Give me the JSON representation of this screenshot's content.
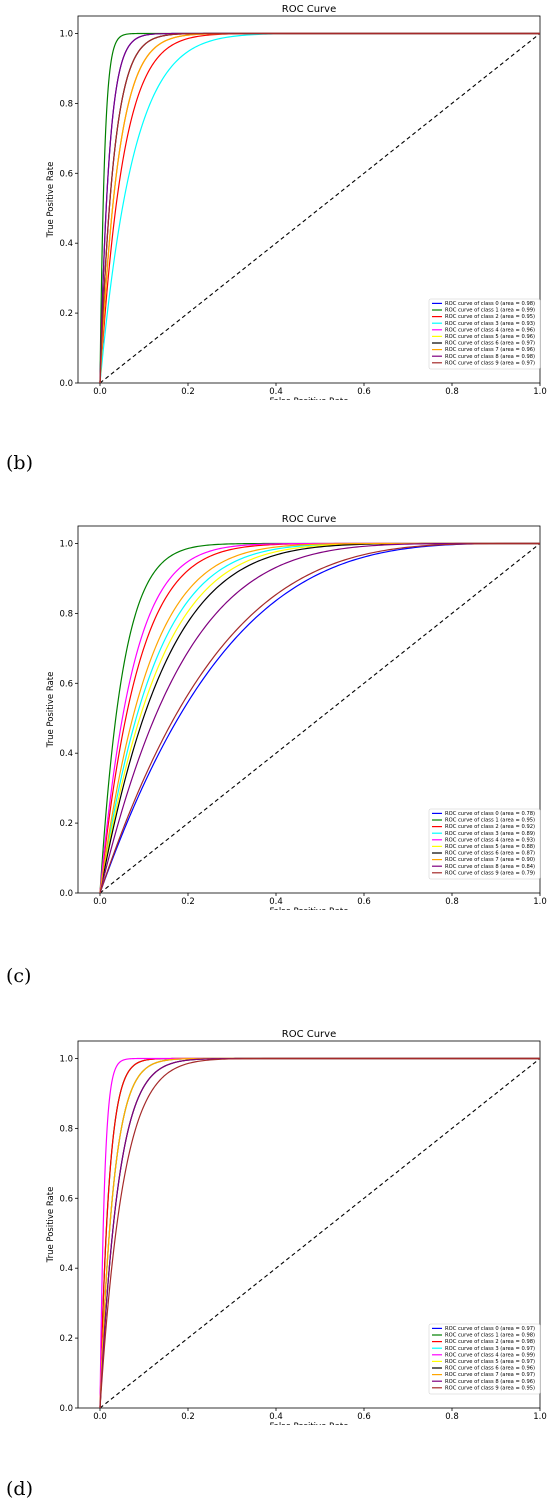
{
  "captions": [
    "(b)",
    "(c)",
    "(d)"
  ],
  "chart_data": [
    {
      "type": "line",
      "title": "ROC Curve",
      "xlabel": "False Positive Rate",
      "ylabel": "True Positive Rate",
      "xlim": [
        -0.05,
        1.0
      ],
      "ylim": [
        0.0,
        1.05
      ],
      "xticks": [
        "0.0",
        "0.2",
        "0.4",
        "0.6",
        "0.8",
        "1.0"
      ],
      "yticks": [
        "0.0",
        "0.2",
        "0.4",
        "0.6",
        "0.8",
        "1.0"
      ],
      "legend_position": "lower-right",
      "diagonal": true,
      "series": [
        {
          "name": "ROC curve of class 0 (area = 0.98)",
          "auc": 0.98,
          "color": "#0000ff"
        },
        {
          "name": "ROC curve of class 1 (area = 0.99)",
          "auc": 0.99,
          "color": "#008000"
        },
        {
          "name": "ROC curve of class 2 (area = 0.95)",
          "auc": 0.95,
          "color": "#ff0000"
        },
        {
          "name": "ROC curve of class 3 (area = 0.93)",
          "auc": 0.93,
          "color": "#00ffff"
        },
        {
          "name": "ROC curve of class 4 (area = 0.96)",
          "auc": 0.96,
          "color": "#ff00ff"
        },
        {
          "name": "ROC curve of class 5 (area = 0.96)",
          "auc": 0.96,
          "color": "#ffff00"
        },
        {
          "name": "ROC curve of class 6 (area = 0.97)",
          "auc": 0.97,
          "color": "#000000"
        },
        {
          "name": "ROC curve of class 7 (area = 0.96)",
          "auc": 0.96,
          "color": "#ffa500"
        },
        {
          "name": "ROC curve of class 8 (area = 0.98)",
          "auc": 0.98,
          "color": "#800080"
        },
        {
          "name": "ROC curve of class 9 (area = 0.97)",
          "auc": 0.97,
          "color": "#a52a2a"
        }
      ]
    },
    {
      "type": "line",
      "title": "ROC Curve",
      "xlabel": "False Positive Rate",
      "ylabel": "True Positive Rate",
      "xlim": [
        -0.05,
        1.0
      ],
      "ylim": [
        0.0,
        1.05
      ],
      "xticks": [
        "0.0",
        "0.2",
        "0.4",
        "0.6",
        "0.8",
        "1.0"
      ],
      "yticks": [
        "0.0",
        "0.2",
        "0.4",
        "0.6",
        "0.8",
        "1.0"
      ],
      "legend_position": "lower-right",
      "diagonal": true,
      "series": [
        {
          "name": "ROC curve of class 0 (area = 0.78)",
          "auc": 0.78,
          "color": "#0000ff"
        },
        {
          "name": "ROC curve of class 1 (area = 0.95)",
          "auc": 0.95,
          "color": "#008000"
        },
        {
          "name": "ROC curve of class 2 (area = 0.92)",
          "auc": 0.92,
          "color": "#ff0000"
        },
        {
          "name": "ROC curve of class 3 (area = 0.89)",
          "auc": 0.89,
          "color": "#00ffff"
        },
        {
          "name": "ROC curve of class 4 (area = 0.93)",
          "auc": 0.93,
          "color": "#ff00ff"
        },
        {
          "name": "ROC curve of class 5 (area = 0.88)",
          "auc": 0.88,
          "color": "#ffff00"
        },
        {
          "name": "ROC curve of class 6 (area = 0.87)",
          "auc": 0.87,
          "color": "#000000"
        },
        {
          "name": "ROC curve of class 7 (area = 0.90)",
          "auc": 0.9,
          "color": "#ffa500"
        },
        {
          "name": "ROC curve of class 8 (area = 0.84)",
          "auc": 0.84,
          "color": "#800080"
        },
        {
          "name": "ROC curve of class 9 (area = 0.79)",
          "auc": 0.79,
          "color": "#a52a2a"
        }
      ]
    },
    {
      "type": "line",
      "title": "ROC Curve",
      "xlabel": "False Positive Rate",
      "ylabel": "True Positive Rate",
      "xlim": [
        -0.05,
        1.0
      ],
      "ylim": [
        0.0,
        1.05
      ],
      "xticks": [
        "0.0",
        "0.2",
        "0.4",
        "0.6",
        "0.8",
        "1.0"
      ],
      "yticks": [
        "0.0",
        "0.2",
        "0.4",
        "0.6",
        "0.8",
        "1.0"
      ],
      "legend_position": "lower-right",
      "diagonal": true,
      "series": [
        {
          "name": "ROC curve of class 0 (area = 0.97)",
          "auc": 0.97,
          "color": "#0000ff"
        },
        {
          "name": "ROC curve of class 1 (area = 0.98)",
          "auc": 0.98,
          "color": "#008000"
        },
        {
          "name": "ROC curve of class 2 (area = 0.98)",
          "auc": 0.98,
          "color": "#ff0000"
        },
        {
          "name": "ROC curve of class 3 (area = 0.97)",
          "auc": 0.97,
          "color": "#00ffff"
        },
        {
          "name": "ROC curve of class 4 (area = 0.99)",
          "auc": 0.99,
          "color": "#ff00ff"
        },
        {
          "name": "ROC curve of class 5 (area = 0.97)",
          "auc": 0.97,
          "color": "#ffff00"
        },
        {
          "name": "ROC curve of class 6 (area = 0.96)",
          "auc": 0.96,
          "color": "#000000"
        },
        {
          "name": "ROC curve of class 7 (area = 0.97)",
          "auc": 0.97,
          "color": "#ffa500"
        },
        {
          "name": "ROC curve of class 8 (area = 0.96)",
          "auc": 0.96,
          "color": "#800080"
        },
        {
          "name": "ROC curve of class 9 (area = 0.95)",
          "auc": 0.95,
          "color": "#a52a2a"
        }
      ]
    }
  ]
}
